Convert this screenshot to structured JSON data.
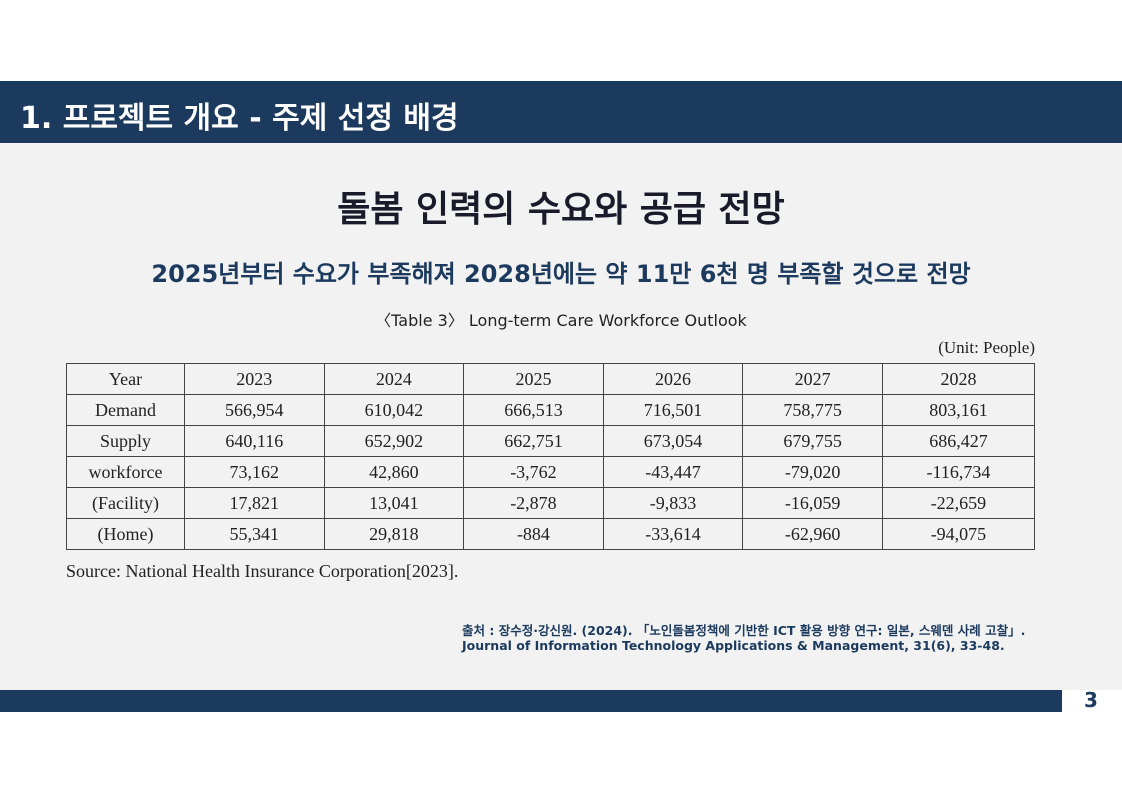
{
  "header": {
    "title": "1. 프로젝트 개요 - 주제 선정 배경"
  },
  "title": "돌봄 인력의 수요와 공급 전망",
  "subtitle": "2025년부터 수요가 부족해져 2028년에는 약 11만 6천 명 부족할 것으로 전망",
  "table": {
    "caption": "〈Table 3〉 Long-term Care Workforce Outlook",
    "unit": "(Unit: People)",
    "columns": [
      "Year",
      "2023",
      "2024",
      "2025",
      "2026",
      "2027",
      "2028"
    ],
    "rows": [
      [
        "Demand",
        "566,954",
        "610,042",
        "666,513",
        "716,501",
        "758,775",
        "803,161"
      ],
      [
        "Supply",
        "640,116",
        "652,902",
        "662,751",
        "673,054",
        "679,755",
        "686,427"
      ],
      [
        "workforce",
        "73,162",
        "42,860",
        "-3,762",
        "-43,447",
        "-79,020",
        "-116,734"
      ],
      [
        "(Facility)",
        "17,821",
        "13,041",
        "-2,878",
        "-9,833",
        "-16,059",
        "-22,659"
      ],
      [
        "(Home)",
        "55,341",
        "29,818",
        "-884",
        "-33,614",
        "-62,960",
        "-94,075"
      ]
    ],
    "source": "Source: National Health Insurance Corporation[2023]."
  },
  "citation": [
    "출처 : 장수정·강신원. (2024). 「노인돌봄정책에 기반한 ICT 활용 방향 연구: 일본, 스웨덴 사례 고찰」.",
    "Journal of Information Technology Applications & Management, 31(6), 33-48."
  ],
  "page_number": "3"
}
